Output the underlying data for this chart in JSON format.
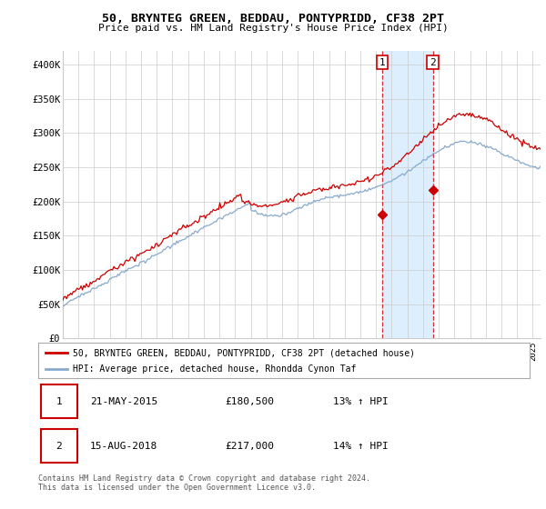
{
  "title": "50, BRYNTEG GREEN, BEDDAU, PONTYPRIDD, CF38 2PT",
  "subtitle": "Price paid vs. HM Land Registry's House Price Index (HPI)",
  "xlim_start": 1995.0,
  "xlim_end": 2025.5,
  "ylim": [
    0,
    420000
  ],
  "yticks": [
    0,
    50000,
    100000,
    150000,
    200000,
    250000,
    300000,
    350000,
    400000
  ],
  "ytick_labels": [
    "£0",
    "£50K",
    "£100K",
    "£150K",
    "£200K",
    "£250K",
    "£300K",
    "£350K",
    "£400K"
  ],
  "line1_color": "#cc0000",
  "line2_color": "#88aacc",
  "shade_color": "#ddeeff",
  "marker1_x": 2015.39,
  "marker1_y": 180500,
  "marker2_x": 2018.62,
  "marker2_y": 217000,
  "legend_line1": "50, BRYNTEG GREEN, BEDDAU, PONTYPRIDD, CF38 2PT (detached house)",
  "legend_line2": "HPI: Average price, detached house, Rhondda Cynon Taf",
  "table_row1": [
    "1",
    "21-MAY-2015",
    "£180,500",
    "13% ↑ HPI"
  ],
  "table_row2": [
    "2",
    "15-AUG-2018",
    "£217,000",
    "14% ↑ HPI"
  ],
  "footnote": "Contains HM Land Registry data © Crown copyright and database right 2024.\nThis data is licensed under the Open Government Licence v3.0.",
  "background_color": "#ffffff",
  "grid_color": "#cccccc"
}
